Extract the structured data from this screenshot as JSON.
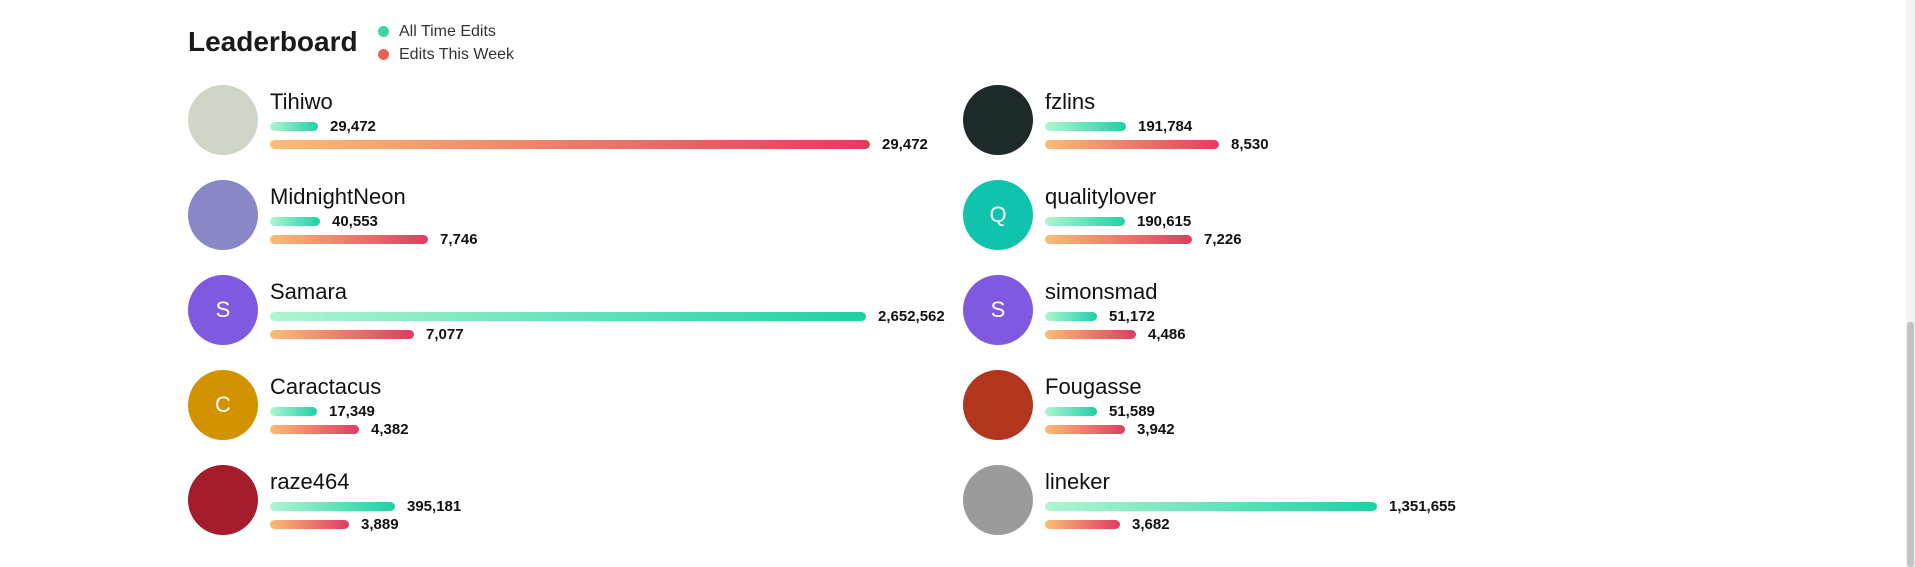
{
  "header": {
    "title": "Leaderboard",
    "legend": [
      {
        "label": "All Time Edits",
        "color": "#36d6a8"
      },
      {
        "label": "Edits This Week",
        "color": "#ea6154"
      }
    ]
  },
  "users": [
    {
      "name": "Tihiwo",
      "all_time": "29,472",
      "all_time_value": 29472,
      "week": "29,472",
      "week_value": 29472,
      "avatar": {
        "type": "photo",
        "icon": "dumplings-photo-icon",
        "bg": "#cfd6c8"
      }
    },
    {
      "name": "MidnightNeon",
      "all_time": "40,553",
      "all_time_value": 40553,
      "week": "7,746",
      "week_value": 7746,
      "avatar": {
        "type": "photo",
        "icon": "anime-character-photo-icon",
        "bg": "#8a87c6"
      }
    },
    {
      "name": "Samara",
      "all_time": "2,652,562",
      "all_time_value": 2652562,
      "week": "7,077",
      "week_value": 7077,
      "avatar": {
        "type": "letter",
        "letter": "S",
        "bg": "#7f5ae0"
      }
    },
    {
      "name": "Caractacus",
      "all_time": "17,349",
      "all_time_value": 17349,
      "week": "4,382",
      "week_value": 4382,
      "avatar": {
        "type": "letter",
        "letter": "C",
        "bg": "#d39300"
      }
    },
    {
      "name": "raze464",
      "all_time": "395,181",
      "all_time_value": 395181,
      "week": "3,889",
      "week_value": 3889,
      "avatar": {
        "type": "photo",
        "icon": "captain-shield-icon",
        "bg": "#a51d2d"
      }
    },
    {
      "name": "fzlins",
      "all_time": "191,784",
      "all_time_value": 191784,
      "week": "8,530",
      "week_value": 8530,
      "avatar": {
        "type": "photo",
        "icon": "dark-fantasy-photo-icon",
        "bg": "#1c2a2a"
      }
    },
    {
      "name": "qualitylover",
      "all_time": "190,615",
      "all_time_value": 190615,
      "week": "7,226",
      "week_value": 7226,
      "avatar": {
        "type": "letter",
        "letter": "Q",
        "bg": "#0fc3ad"
      }
    },
    {
      "name": "simonsmad",
      "all_time": "51,172",
      "all_time_value": 51172,
      "week": "4,486",
      "week_value": 4486,
      "avatar": {
        "type": "letter",
        "letter": "S",
        "bg": "#7f5ae0"
      }
    },
    {
      "name": "Fougasse",
      "all_time": "51,589",
      "all_time_value": 51589,
      "week": "3,942",
      "week_value": 3942,
      "avatar": {
        "type": "photo",
        "icon": "folk-art-photo-icon",
        "bg": "#b2361e"
      }
    },
    {
      "name": "lineker",
      "all_time": "1,351,655",
      "all_time_value": 1351655,
      "week": "3,682",
      "week_value": 3682,
      "avatar": {
        "type": "photo",
        "icon": "vintage-portrait-photo-icon",
        "bg": "#9b9b9b"
      }
    }
  ]
}
